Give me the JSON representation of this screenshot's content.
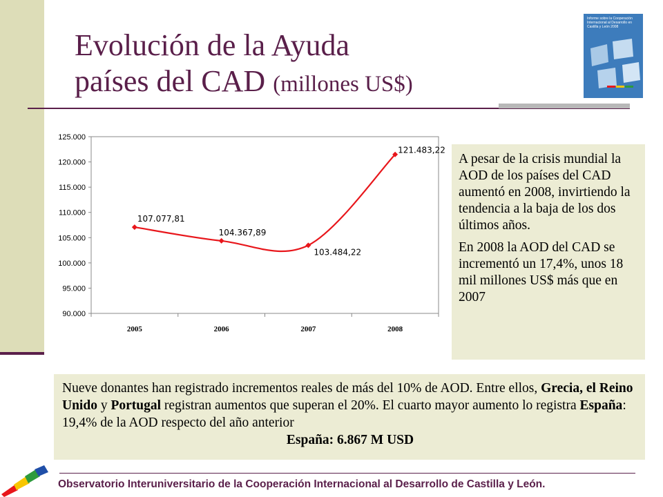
{
  "title": {
    "line1": "Evolución de la Ayuda",
    "line2": "países del CAD",
    "line2_small": "(millones US$)"
  },
  "colors": {
    "accent": "#5a1f4a",
    "series": "#e8161b",
    "box_bg": "#ececd4",
    "side_bar": "#ddddb8"
  },
  "report_cover": {
    "text": "Informe sobre la Cooperación Internacional al Desarrollo en Castilla y León 2008"
  },
  "chart_data": {
    "type": "line",
    "categories": [
      "2005",
      "2006",
      "2007",
      "2008"
    ],
    "series": [
      {
        "values": [
          107077.81,
          104367.89,
          103484.22,
          121483.22
        ]
      }
    ],
    "data_labels": [
      "107.077,81",
      "104.367,89",
      "103.484,22",
      "121.483,22"
    ],
    "y_ticks": [
      "90.000",
      "95.000",
      "100.000",
      "105.000",
      "110.000",
      "115.000",
      "120.000",
      "125.000"
    ],
    "ylim": [
      90000,
      125000
    ],
    "grid": false,
    "legend": "none"
  },
  "side_text": {
    "p1": "A pesar de la crisis mundial la AOD de los países del CAD aumentó en 2008, invirtiendo la tendencia a la baja de los dos últimos años.",
    "p2": "En 2008 la AOD del CAD se incrementó un 17,4%, unos 18 mil millones US$ más que en 2007"
  },
  "bottom_text": {
    "part1": "Nueve donantes han registrado incrementos reales de más del 10% de AOD. Entre ellos, ",
    "bold1": "Grecia, el Reino Unido",
    "part2": " y ",
    "bold2": "Portugal",
    "part3": " registran aumentos que superan el 20%. El cuarto mayor aumento lo registra ",
    "bold3": "España",
    "part4": ": 19,4% de la AOD respecto del año anterior",
    "line_center": "España: 6.867 M USD"
  },
  "footer": {
    "text": "Observatorio Interuniversitario de la Cooperación Internacional al Desarrollo de Castilla y León."
  }
}
